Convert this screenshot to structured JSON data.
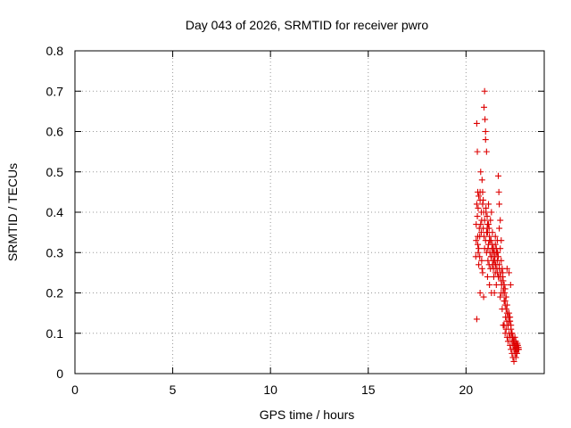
{
  "chart_data": {
    "type": "scatter",
    "title": "Day 043 of 2026, SRMTID for receiver pwro",
    "xlabel": "GPS time / hours",
    "ylabel": "SRMTID / TECUs",
    "xlim": [
      0,
      24
    ],
    "ylim": [
      0,
      0.8
    ],
    "xticks": [
      0,
      5,
      10,
      15,
      20
    ],
    "xtick_labels": [
      "0",
      "5",
      "10",
      "15",
      "20"
    ],
    "yticks": [
      0,
      0.1,
      0.2,
      0.3,
      0.4,
      0.5,
      0.6,
      0.7,
      0.8
    ],
    "ytick_labels": [
      "0",
      "0.1",
      "0.2",
      "0.3",
      "0.4",
      "0.5",
      "0.6",
      "0.7",
      "0.8"
    ],
    "grid": true,
    "marker": "+",
    "marker_color": "#dd0000",
    "series": [
      {
        "name": "pwro",
        "x": [
          20.5,
          20.52,
          20.55,
          20.55,
          20.58,
          20.6,
          20.6,
          20.62,
          20.65,
          20.65,
          20.68,
          20.7,
          20.72,
          20.72,
          20.75,
          20.78,
          20.8,
          20.8,
          20.82,
          20.85,
          20.85,
          20.88,
          20.9,
          20.9,
          20.92,
          20.95,
          20.95,
          20.97,
          21.0,
          21.0,
          21.02,
          21.05,
          21.05,
          21.08,
          21.1,
          21.1,
          21.12,
          21.15,
          21.15,
          21.18,
          21.2,
          21.2,
          21.22,
          21.25,
          21.25,
          21.28,
          21.3,
          21.3,
          21.32,
          21.35,
          21.35,
          21.38,
          21.4,
          21.42,
          21.45,
          21.45,
          21.48,
          21.5,
          21.5,
          21.52,
          21.55,
          21.55,
          21.58,
          21.6,
          21.6,
          21.62,
          21.65,
          21.65,
          21.68,
          21.7,
          21.7,
          21.72,
          21.75,
          21.75,
          21.78,
          21.8,
          21.8,
          21.82,
          21.85,
          21.85,
          21.88,
          21.9,
          21.9,
          21.92,
          21.95,
          21.95,
          21.98,
          22.0,
          22.0,
          22.02,
          22.05,
          22.05,
          22.08,
          22.1,
          22.1,
          22.12,
          22.15,
          22.15,
          22.18,
          22.2,
          22.2,
          22.22,
          22.25,
          22.25,
          22.28,
          22.3,
          22.3,
          22.32,
          22.35,
          22.35,
          22.38,
          22.4,
          22.4,
          22.42,
          22.45,
          22.45,
          22.48,
          22.5,
          22.5,
          22.52,
          22.55,
          22.55,
          22.58,
          22.6,
          22.6,
          22.62,
          22.65,
          22.65,
          22.68,
          22.7,
          20.55,
          20.6,
          20.62,
          20.7,
          20.75,
          20.82,
          20.88,
          20.95,
          21.0,
          21.05,
          21.08,
          21.12,
          21.15,
          21.18,
          21.22,
          21.28,
          21.35,
          21.4,
          21.45,
          21.5,
          21.55,
          21.6,
          21.65,
          21.7,
          21.75,
          21.8,
          21.88,
          21.95,
          22.0,
          22.05,
          22.1,
          22.2,
          22.25,
          22.3,
          22.35,
          22.4,
          22.45,
          22.5,
          22.55,
          22.6,
          20.52,
          20.58,
          20.65,
          20.72,
          20.78,
          20.85,
          20.92,
          21.02,
          21.1,
          21.2,
          21.3,
          21.4,
          21.5,
          21.6,
          21.7,
          21.8,
          21.9,
          22.0,
          22.1,
          22.15,
          22.25,
          22.35,
          22.45,
          22.55,
          22.65
        ],
        "y": [
          0.29,
          0.33,
          0.42,
          0.135,
          0.55,
          0.45,
          0.32,
          0.3,
          0.44,
          0.27,
          0.36,
          0.34,
          0.45,
          0.2,
          0.5,
          0.4,
          0.38,
          0.28,
          0.48,
          0.42,
          0.25,
          0.36,
          0.4,
          0.19,
          0.66,
          0.7,
          0.38,
          0.63,
          0.58,
          0.33,
          0.4,
          0.55,
          0.3,
          0.36,
          0.35,
          0.24,
          0.28,
          0.42,
          0.32,
          0.36,
          0.34,
          0.22,
          0.3,
          0.38,
          0.26,
          0.33,
          0.4,
          0.2,
          0.31,
          0.35,
          0.27,
          0.3,
          0.28,
          0.24,
          0.3,
          0.2,
          0.29,
          0.34,
          0.25,
          0.27,
          0.31,
          0.22,
          0.26,
          0.33,
          0.28,
          0.3,
          0.49,
          0.24,
          0.45,
          0.42,
          0.27,
          0.24,
          0.38,
          0.19,
          0.25,
          0.33,
          0.2,
          0.22,
          0.26,
          0.16,
          0.24,
          0.23,
          0.12,
          0.21,
          0.18,
          0.12,
          0.2,
          0.18,
          0.1,
          0.14,
          0.16,
          0.11,
          0.13,
          0.26,
          0.09,
          0.15,
          0.12,
          0.08,
          0.14,
          0.25,
          0.1,
          0.13,
          0.09,
          0.07,
          0.22,
          0.11,
          0.06,
          0.1,
          0.08,
          0.05,
          0.09,
          0.07,
          0.04,
          0.08,
          0.06,
          0.03,
          0.07,
          0.09,
          0.05,
          0.06,
          0.08,
          0.04,
          0.06,
          0.07,
          0.05,
          0.075,
          0.06,
          0.07,
          0.065,
          0.06,
          0.62,
          0.34,
          0.41,
          0.29,
          0.37,
          0.26,
          0.43,
          0.31,
          0.6,
          0.35,
          0.39,
          0.31,
          0.37,
          0.27,
          0.33,
          0.29,
          0.32,
          0.26,
          0.28,
          0.32,
          0.3,
          0.25,
          0.29,
          0.36,
          0.31,
          0.28,
          0.25,
          0.22,
          0.21,
          0.19,
          0.17,
          0.15,
          0.13,
          0.12,
          0.1,
          0.09,
          0.08,
          0.07,
          0.06,
          0.05,
          0.37,
          0.39,
          0.31,
          0.43,
          0.35,
          0.45,
          0.34,
          0.41,
          0.37,
          0.33,
          0.29,
          0.31,
          0.27,
          0.3,
          0.26,
          0.23,
          0.2,
          0.17,
          0.15,
          0.12,
          0.14,
          0.1,
          0.08,
          0.07,
          0.06
        ]
      }
    ]
  }
}
